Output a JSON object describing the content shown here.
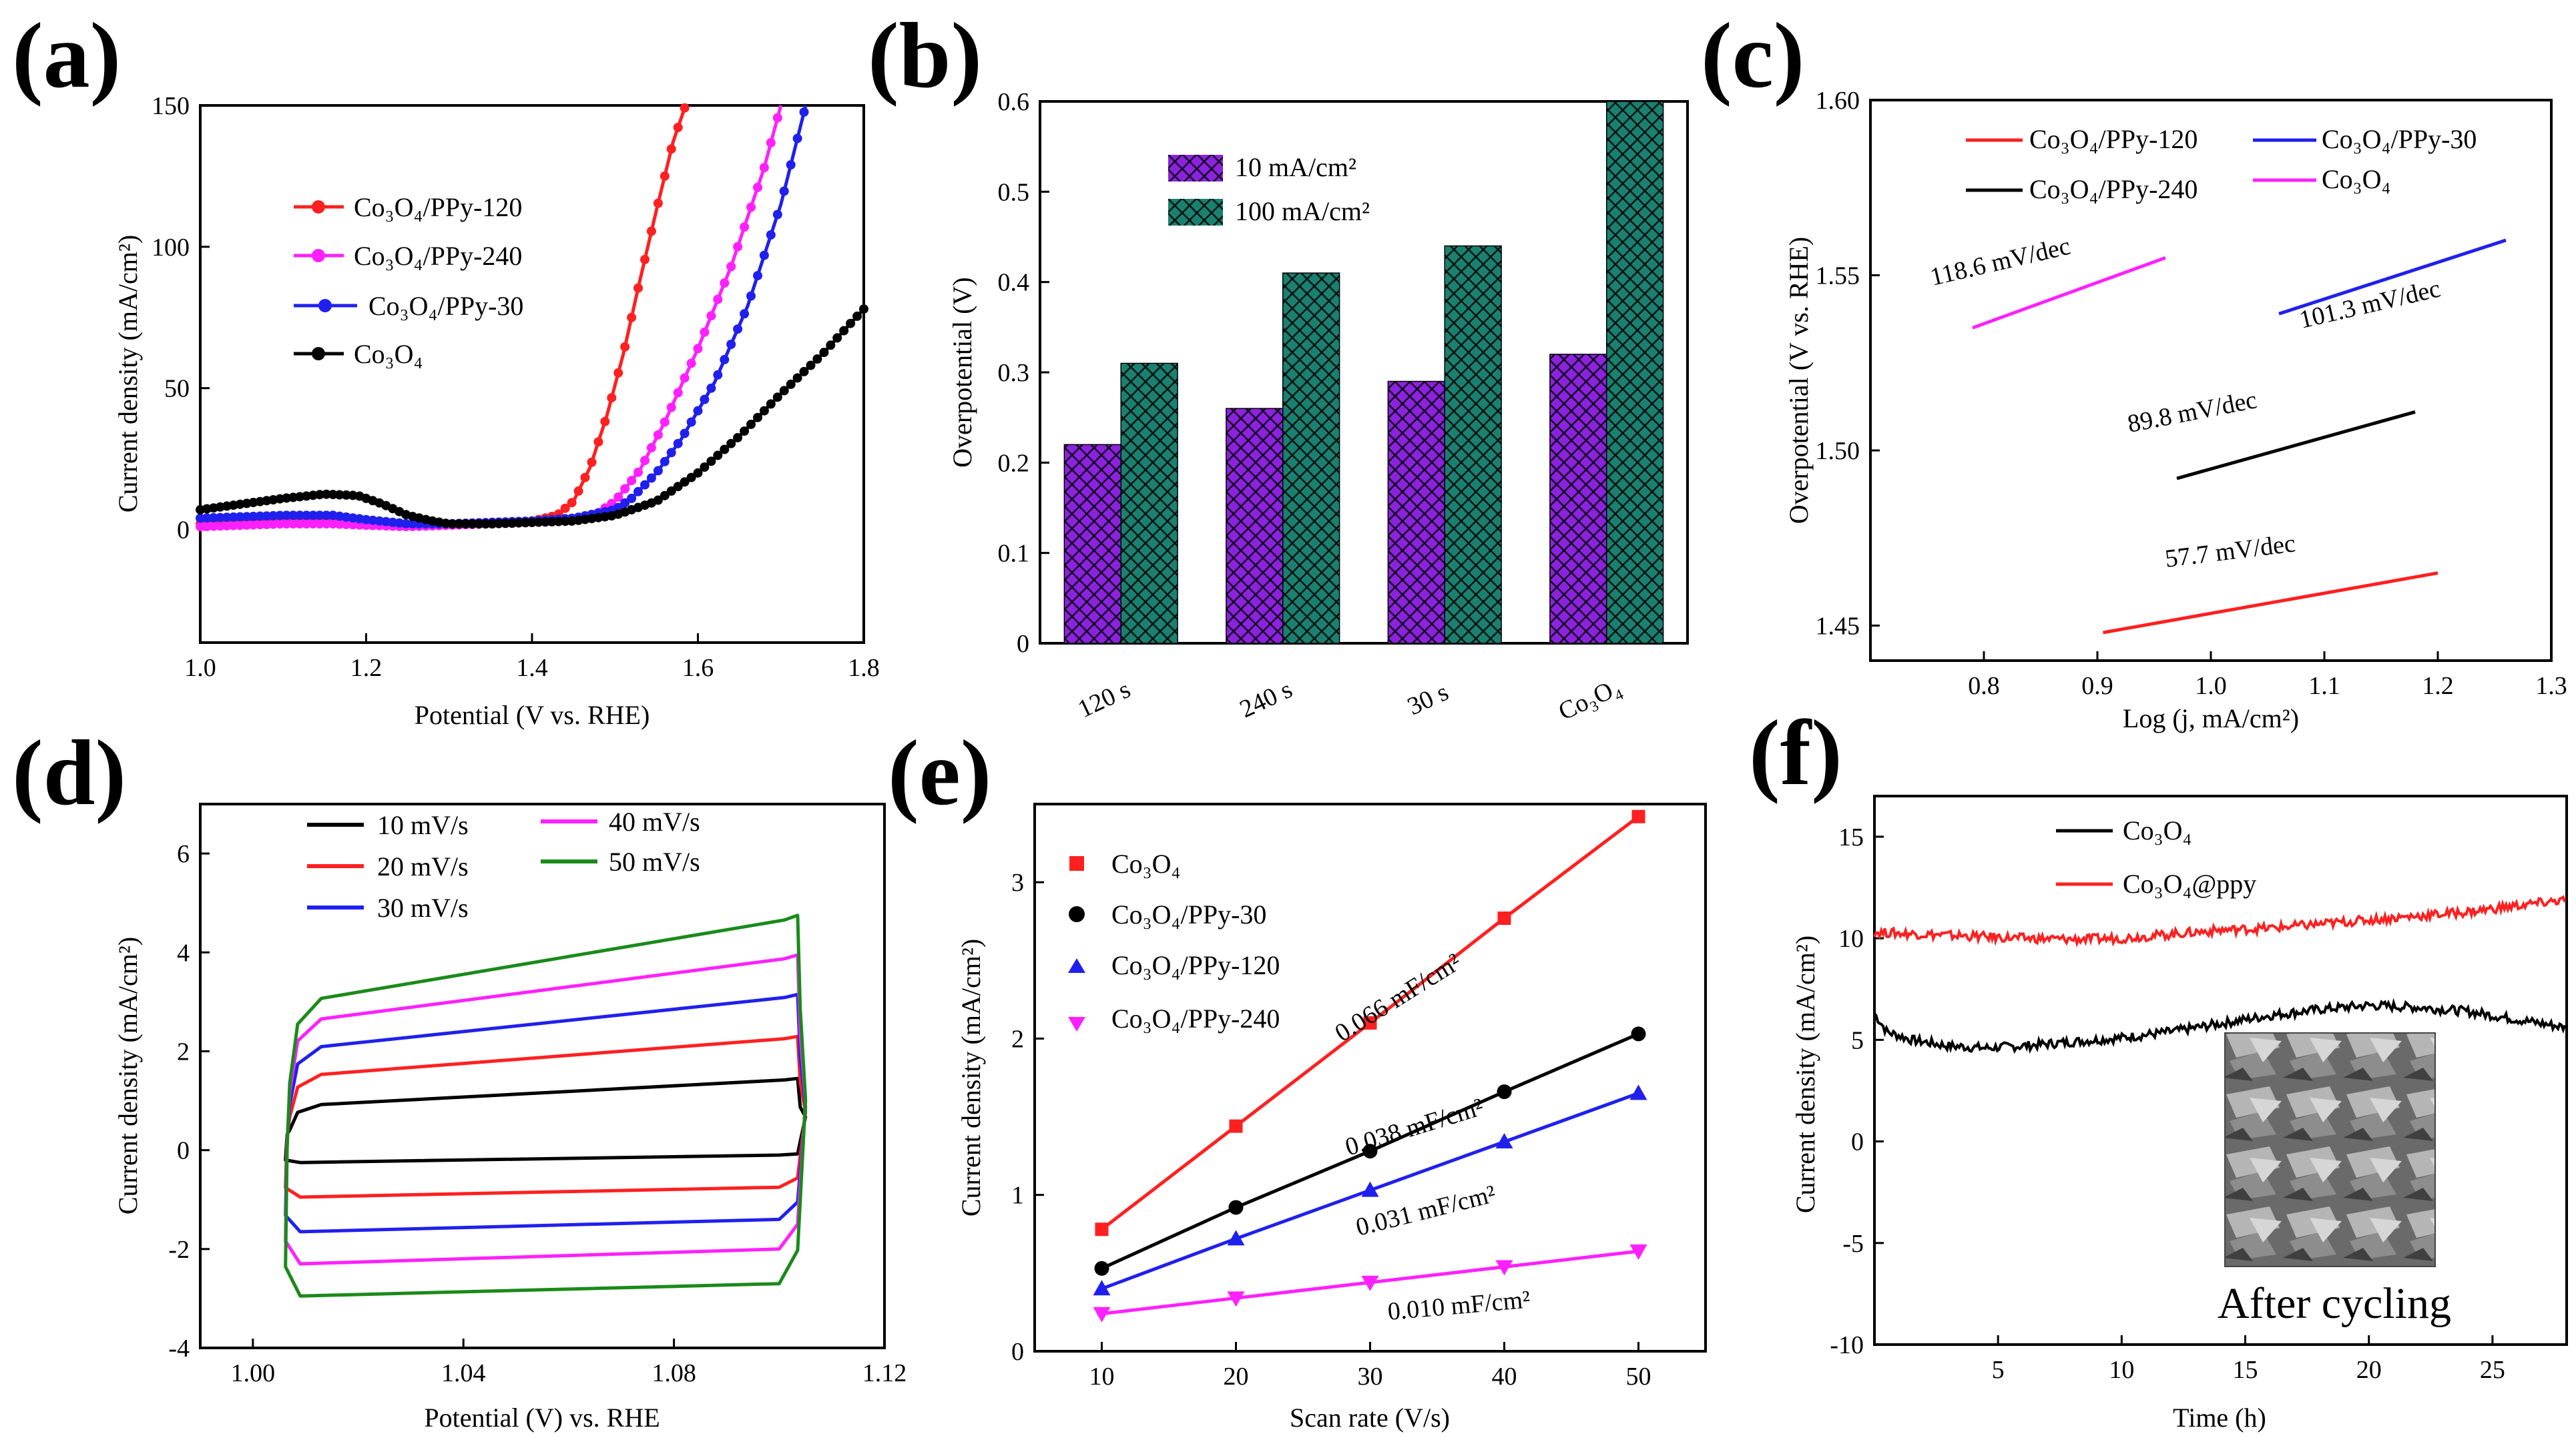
{
  "panel_labels": [
    "(a)",
    "(b)",
    "(c)",
    "(d)",
    "(e)",
    "(f)"
  ],
  "chart_data": [
    {
      "type": "line",
      "panel": "(a)",
      "xlabel": "Potential (V vs. RHE)",
      "ylabel": "Current density (mA/cm²)",
      "xlim": [
        1.0,
        1.8
      ],
      "ylim": [
        -40,
        150
      ],
      "xticks": [
        "1.0",
        "1.2",
        "1.4",
        "1.6",
        "1.8"
      ],
      "yticks": [
        "0",
        "50",
        "100",
        "150"
      ],
      "legend": [
        "Co₃O₄/PPy-120",
        "Co₃O₄/PPy-240",
        "Co₃O₄/PPy-30",
        "Co₃O₄"
      ],
      "series": [
        {
          "name": "Co₃O₄/PPy-120",
          "color": "#ff2020",
          "x": [
            1.0,
            1.1,
            1.16,
            1.2,
            1.25,
            1.3,
            1.35,
            1.4,
            1.43,
            1.45,
            1.47,
            1.49,
            1.51,
            1.53,
            1.55,
            1.57,
            1.585
          ],
          "y": [
            2,
            3,
            3,
            2,
            1.5,
            2,
            2.5,
            3,
            5,
            10,
            22,
            40,
            62,
            88,
            113,
            137,
            150
          ]
        },
        {
          "name": "Co₃O₄/PPy-240",
          "color": "#ff20ff",
          "x": [
            1.0,
            1.1,
            1.16,
            1.2,
            1.25,
            1.3,
            1.35,
            1.4,
            1.45,
            1.48,
            1.5,
            1.53,
            1.56,
            1.6,
            1.64,
            1.68,
            1.7
          ],
          "y": [
            1,
            2,
            2,
            1.5,
            1,
            1.5,
            2,
            2.5,
            3.5,
            6,
            10,
            21,
            38,
            64,
            93,
            128,
            150
          ]
        },
        {
          "name": "Co₃O₄/PPy-30",
          "color": "#2020ee",
          "x": [
            1.0,
            1.1,
            1.16,
            1.2,
            1.25,
            1.3,
            1.35,
            1.4,
            1.45,
            1.5,
            1.52,
            1.55,
            1.58,
            1.62,
            1.66,
            1.7,
            1.73
          ],
          "y": [
            4,
            5,
            5,
            3.5,
            2,
            2,
            2.5,
            3,
            4,
            7,
            11,
            20,
            32,
            52,
            79,
            115,
            150
          ]
        },
        {
          "name": "Co₃O₄",
          "color": "#000000",
          "x": [
            1.0,
            1.05,
            1.1,
            1.15,
            1.19,
            1.22,
            1.25,
            1.28,
            1.3,
            1.35,
            1.4,
            1.45,
            1.5,
            1.55,
            1.6,
            1.65,
            1.7,
            1.75,
            1.8
          ],
          "y": [
            7,
            9,
            11,
            12.5,
            12,
            9,
            5,
            3,
            2,
            2,
            2.5,
            3,
            5,
            10,
            20,
            33,
            48,
            62,
            78
          ]
        }
      ]
    },
    {
      "type": "bar",
      "panel": "(b)",
      "xlabel": "",
      "ylabel": "Overpotential (V)",
      "ylim": [
        0,
        0.6
      ],
      "yticks": [
        "0",
        "0.1",
        "0.2",
        "0.3",
        "0.4",
        "0.5",
        "0.6"
      ],
      "categories": [
        "120 s",
        "240 s",
        "30 s",
        "Co₃O₄"
      ],
      "series": [
        {
          "name": "10 mA/cm²",
          "color": "#8b22dd",
          "values": [
            0.22,
            0.26,
            0.29,
            0.32
          ]
        },
        {
          "name": "100 mA/cm²",
          "color": "#1a8070",
          "values": [
            0.31,
            0.41,
            0.44,
            0.6
          ]
        }
      ]
    },
    {
      "type": "line",
      "panel": "(c)",
      "xlabel": "Log (j, mA/cm²)",
      "ylabel": "Overpotential (V vs. RHE)",
      "xlim": [
        0.7,
        1.3
      ],
      "ylim": [
        1.44,
        1.6
      ],
      "xticks": [
        "0.8",
        "0.9",
        "1.0",
        "1.1",
        "1.2",
        "1.3"
      ],
      "yticks": [
        "1.45",
        "1.50",
        "1.55",
        "1.60"
      ],
      "legend": [
        "Co₃O₄/PPy-120",
        "Co₃O₄/PPy-30",
        "Co₃O₄/PPy-240",
        "Co₃O₄"
      ],
      "series": [
        {
          "name": "Co₃O₄/PPy-120",
          "color": "#ff2020",
          "x": [
            0.905,
            1.2
          ],
          "y": [
            1.448,
            1.465
          ],
          "slope_label": "57.7 mV/dec"
        },
        {
          "name": "Co₃O₄/PPy-30",
          "color": "#2020ee",
          "x": [
            1.06,
            1.26
          ],
          "y": [
            1.539,
            1.56
          ],
          "slope_label": "101.3 mV/dec"
        },
        {
          "name": "Co₃O₄/PPy-240",
          "color": "#000000",
          "x": [
            0.97,
            1.18
          ],
          "y": [
            1.492,
            1.511
          ],
          "slope_label": "89.8 mV/dec"
        },
        {
          "name": "Co₃O₄",
          "color": "#ff20ff",
          "x": [
            0.79,
            0.96
          ],
          "y": [
            1.535,
            1.555
          ],
          "slope_label": "118.6 mV/dec"
        }
      ]
    },
    {
      "type": "line",
      "panel": "(d)",
      "xlabel": "Potential (V) vs. RHE",
      "ylabel": "Current density (mA/cm²)",
      "xlim": [
        0.99,
        1.12
      ],
      "ylim": [
        -4,
        7
      ],
      "xticks": [
        "1.00",
        "1.04",
        "1.08",
        "1.12"
      ],
      "yticks": [
        "-4",
        "-2",
        "0",
        "2",
        "4",
        "6"
      ],
      "legend": [
        "10 mV/s",
        "20 mV/s",
        "30 mV/s",
        "40 mV/s",
        "50 mV/s"
      ],
      "series": [
        {
          "name": "10 mV/s",
          "color": "#000000",
          "upper": [
            0.9,
            1.45
          ],
          "lower": [
            -0.25,
            -0.1
          ]
        },
        {
          "name": "20 mV/s",
          "color": "#ff2020",
          "upper": [
            1.5,
            2.3
          ],
          "lower": [
            -0.95,
            -0.75
          ]
        },
        {
          "name": "30 mV/s",
          "color": "#2020ee",
          "upper": [
            2.05,
            3.15
          ],
          "lower": [
            -1.65,
            -1.4
          ]
        },
        {
          "name": "40 mV/s",
          "color": "#ff20ff",
          "upper": [
            2.6,
            3.95
          ],
          "lower": [
            -2.3,
            -2.0
          ]
        },
        {
          "name": "50 mV/s",
          "color": "#1a8a1a",
          "upper": [
            3.0,
            4.75
          ],
          "lower": [
            -2.95,
            -2.7
          ]
        }
      ]
    },
    {
      "type": "scatter",
      "panel": "(e)",
      "xlabel": "Scan rate (V/s)",
      "ylabel": "Current density (mA/cm²)",
      "xlim": [
        5,
        55
      ],
      "ylim": [
        0,
        3.5
      ],
      "xticks": [
        "10",
        "20",
        "30",
        "40",
        "50"
      ],
      "yticks": [
        "0",
        "1",
        "2",
        "3"
      ],
      "legend": [
        "Co₃O₄",
        "Co₃O₄/PPy-30",
        "Co₃O₄/PPy-120",
        "Co₃O₄/PPy-240"
      ],
      "series": [
        {
          "name": "Co₃O₄",
          "color": "#ff2020",
          "marker": "square",
          "x": [
            10,
            20,
            30,
            40,
            50
          ],
          "y": [
            0.78,
            1.44,
            2.1,
            2.77,
            3.42
          ],
          "slope_label": "0.066 mF/cm²"
        },
        {
          "name": "Co₃O₄/PPy-30",
          "color": "#000000",
          "marker": "circle",
          "x": [
            10,
            20,
            30,
            40,
            50
          ],
          "y": [
            0.53,
            0.92,
            1.28,
            1.66,
            2.03
          ],
          "slope_label": "0.038 mF/cm²"
        },
        {
          "name": "Co₃O₄/PPy-120",
          "color": "#2020ee",
          "marker": "triangle-up",
          "x": [
            10,
            20,
            30,
            40,
            50
          ],
          "y": [
            0.4,
            0.72,
            1.03,
            1.34,
            1.65
          ],
          "slope_label": "0.031 mF/cm²"
        },
        {
          "name": "Co₃O₄/PPy-240",
          "color": "#ff20ff",
          "marker": "triangle-down",
          "x": [
            10,
            20,
            30,
            40,
            50
          ],
          "y": [
            0.24,
            0.34,
            0.44,
            0.54,
            0.64
          ],
          "slope_label": "0.010 mF/cm²"
        }
      ]
    },
    {
      "type": "line",
      "panel": "(f)",
      "xlabel": "Time (h)",
      "ylabel": "Current density (mA/cm²)",
      "xlim": [
        0,
        28
      ],
      "ylim": [
        -10,
        17
      ],
      "xticks": [
        "5",
        "10",
        "15",
        "20",
        "25"
      ],
      "yticks": [
        "-10",
        "-5",
        "0",
        "5",
        "10",
        "15"
      ],
      "legend": [
        "Co₃O₄",
        "Co₃O₄@ppy"
      ],
      "inset_caption": "After cycling",
      "series": [
        {
          "name": "Co₃O₄",
          "color": "#000000",
          "x": [
            0,
            0.5,
            1.5,
            3,
            4.5,
            6,
            8,
            10,
            12,
            14,
            16,
            18,
            20,
            22,
            24,
            26,
            28
          ],
          "y": [
            6.3,
            5.4,
            5.0,
            4.7,
            4.6,
            4.7,
            4.9,
            5.1,
            5.4,
            5.8,
            6.2,
            6.5,
            6.7,
            6.6,
            6.4,
            6.0,
            5.6
          ]
        },
        {
          "name": "Co₃O₄@ppy",
          "color": "#ff2020",
          "x": [
            0,
            2,
            4,
            6,
            8,
            10,
            12,
            14,
            16,
            18,
            20,
            22,
            24,
            26,
            28
          ],
          "y": [
            10.3,
            10.2,
            10.1,
            10.0,
            9.95,
            10.0,
            10.2,
            10.4,
            10.5,
            10.7,
            10.9,
            11.1,
            11.3,
            11.6,
            11.9
          ]
        }
      ]
    }
  ]
}
